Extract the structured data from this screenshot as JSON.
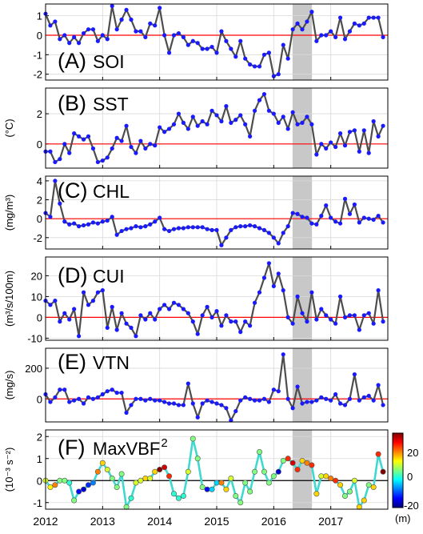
{
  "figure": {
    "x_tick_labels": [
      "2012",
      "2013",
      "2014",
      "2015",
      "2016",
      "2017"
    ],
    "shaded_period": [
      2016.33,
      2016.67
    ],
    "colorbar": {
      "ticks": [
        "20",
        "0",
        "-20"
      ],
      "unit": "(m)",
      "range": [
        -30,
        30
      ],
      "colormap": [
        "#00007f",
        "#0000ff",
        "#007fff",
        "#00ffff",
        "#7fff7f",
        "#ffff00",
        "#ff7f00",
        "#ff0000",
        "#7f0000"
      ]
    },
    "colors": {
      "line": "#4d4d4d",
      "marker": "#1a1aff",
      "zero_line": "#ff0000",
      "shade": "#c8c8c8",
      "grid": "#d9d9d9",
      "vbf_line": "#3fd9d0"
    }
  },
  "chart_data": [
    {
      "id": "A",
      "type": "line",
      "panel_label": "(A)",
      "panel_name": "SOI",
      "ylabel": "",
      "ylim": [
        -2.3,
        1.6
      ],
      "yticks": [
        -2,
        -1,
        0,
        1
      ],
      "ytick_labels": [
        "-2",
        "-1",
        "0",
        "1"
      ],
      "x": [
        2012.0,
        2012.0833,
        2012.1667,
        2012.25,
        2012.3333,
        2012.4167,
        2012.5,
        2012.5833,
        2012.6667,
        2012.75,
        2012.8333,
        2012.9167,
        2013.0,
        2013.0833,
        2013.1667,
        2013.25,
        2013.3333,
        2013.4167,
        2013.5,
        2013.5833,
        2013.6667,
        2013.75,
        2013.8333,
        2013.9167,
        2014.0,
        2014.0833,
        2014.1667,
        2014.25,
        2014.3333,
        2014.4167,
        2014.5,
        2014.5833,
        2014.6667,
        2014.75,
        2014.8333,
        2014.9167,
        2015.0,
        2015.0833,
        2015.1667,
        2015.25,
        2015.3333,
        2015.4167,
        2015.5,
        2015.5833,
        2015.6667,
        2015.75,
        2015.8333,
        2015.9167,
        2016.0,
        2016.0833,
        2016.1667,
        2016.25,
        2016.3333,
        2016.4167,
        2016.5,
        2016.5833,
        2016.6667,
        2016.75,
        2016.8333,
        2016.9167,
        2017.0,
        2017.0833,
        2017.1667,
        2017.25,
        2017.3333,
        2017.4167,
        2017.5,
        2017.5833,
        2017.6667,
        2017.75,
        2017.8333,
        2017.9167
      ],
      "values": [
        1.1,
        0.5,
        0.7,
        -0.2,
        0.0,
        -0.4,
        -0.1,
        -0.4,
        0.1,
        0.3,
        0.3,
        -0.3,
        0.0,
        -0.2,
        1.5,
        0.3,
        0.8,
        1.3,
        0.8,
        0.2,
        0.2,
        -0.1,
        0.6,
        0.5,
        1.4,
        0.0,
        -0.9,
        0.0,
        0.1,
        -0.1,
        -0.5,
        -0.3,
        -0.4,
        -0.7,
        -0.7,
        -0.6,
        -0.9,
        0.2,
        -0.3,
        -0.7,
        -1.1,
        -0.3,
        -1.2,
        -1.5,
        -1.6,
        -1.6,
        -1.0,
        -0.9,
        -2.1,
        -2.0,
        -0.5,
        -1.2,
        0.3,
        0.6,
        0.3,
        0.7,
        1.2,
        -0.3,
        0.0,
        0.0,
        0.2,
        -0.1,
        0.9,
        -0.2,
        0.2,
        0.6,
        0.5,
        0.6,
        0.9,
        0.9,
        0.9,
        -0.1
      ]
    },
    {
      "id": "B",
      "type": "line",
      "panel_label": "(B)",
      "panel_name": "SST",
      "ylabel": "(°C)",
      "ylim": [
        -1.6,
        3.7
      ],
      "yticks": [
        0,
        2
      ],
      "ytick_labels": [
        "0",
        "2"
      ],
      "x": [
        2012.0,
        2012.0833,
        2012.1667,
        2012.25,
        2012.3333,
        2012.4167,
        2012.5,
        2012.5833,
        2012.6667,
        2012.75,
        2012.8333,
        2012.9167,
        2013.0,
        2013.0833,
        2013.1667,
        2013.25,
        2013.3333,
        2013.4167,
        2013.5,
        2013.5833,
        2013.6667,
        2013.75,
        2013.8333,
        2013.9167,
        2014.0,
        2014.0833,
        2014.1667,
        2014.25,
        2014.3333,
        2014.4167,
        2014.5,
        2014.5833,
        2014.6667,
        2014.75,
        2014.8333,
        2014.9167,
        2015.0,
        2015.0833,
        2015.1667,
        2015.25,
        2015.3333,
        2015.4167,
        2015.5,
        2015.5833,
        2015.6667,
        2015.75,
        2015.8333,
        2015.9167,
        2016.0,
        2016.0833,
        2016.1667,
        2016.25,
        2016.3333,
        2016.4167,
        2016.5,
        2016.5833,
        2016.6667,
        2016.75,
        2016.8333,
        2016.9167,
        2017.0,
        2017.0833,
        2017.1667,
        2017.25,
        2017.3333,
        2017.4167,
        2017.5,
        2017.5833,
        2017.6667,
        2017.75,
        2017.8333,
        2017.9167
      ],
      "values": [
        -0.5,
        -0.5,
        -1.2,
        -1.0,
        0.0,
        -0.6,
        0.7,
        0.5,
        0.3,
        0.5,
        -0.3,
        -1.2,
        -1.1,
        -0.9,
        -0.3,
        0.4,
        0.2,
        1.2,
        -0.2,
        -0.6,
        0.2,
        -0.3,
        0.0,
        -0.1,
        1.1,
        0.8,
        1.0,
        1.3,
        2.0,
        1.4,
        1.0,
        1.8,
        1.2,
        1.5,
        1.3,
        2.2,
        1.9,
        1.5,
        2.5,
        1.4,
        1.6,
        1.9,
        1.3,
        0.5,
        2.2,
        2.9,
        3.3,
        2.2,
        2.0,
        1.4,
        1.8,
        1.0,
        2.1,
        1.3,
        1.4,
        1.8,
        1.3,
        -0.7,
        0.0,
        -0.3,
        0.1,
        -0.2,
        0.7,
        -0.1,
        0.8,
        0.9,
        -0.5,
        0.9,
        -0.6,
        1.5,
        0.5,
        1.2
      ]
    },
    {
      "id": "C",
      "type": "line",
      "panel_label": "(C)",
      "panel_name": "CHL",
      "ylabel": "(mg/m³)",
      "ylim": [
        -3.2,
        4.5
      ],
      "yticks": [
        -2,
        0,
        2,
        4
      ],
      "ytick_labels": [
        "-2",
        "0",
        "2",
        "4"
      ],
      "x": [
        2012.0,
        2012.0833,
        2012.1667,
        2012.25,
        2012.3333,
        2012.4167,
        2012.5,
        2012.5833,
        2012.6667,
        2012.75,
        2012.8333,
        2012.9167,
        2013.0,
        2013.0833,
        2013.1667,
        2013.25,
        2013.3333,
        2013.4167,
        2013.5,
        2013.5833,
        2013.6667,
        2013.75,
        2013.8333,
        2013.9167,
        2014.0,
        2014.0833,
        2014.1667,
        2014.25,
        2014.3333,
        2014.4167,
        2014.5,
        2014.5833,
        2014.6667,
        2014.75,
        2014.8333,
        2014.9167,
        2015.0,
        2015.0833,
        2015.1667,
        2015.25,
        2015.3333,
        2015.4167,
        2015.5,
        2015.5833,
        2015.6667,
        2015.75,
        2015.8333,
        2015.9167,
        2016.0,
        2016.0833,
        2016.1667,
        2016.25,
        2016.3333,
        2016.4167,
        2016.5,
        2016.5833,
        2016.6667,
        2016.75,
        2016.8333,
        2016.9167,
        2017.0,
        2017.0833,
        2017.1667,
        2017.25,
        2017.3333,
        2017.4167,
        2017.5,
        2017.5833,
        2017.6667,
        2017.75,
        2017.8333,
        2017.9167
      ],
      "values": [
        0.6,
        0.2,
        4.0,
        1.6,
        -0.3,
        -0.6,
        -0.5,
        -0.8,
        -0.7,
        -0.6,
        -0.4,
        -0.5,
        -0.3,
        -0.2,
        0.2,
        -1.7,
        -1.3,
        -1.1,
        -1.0,
        -0.8,
        -0.9,
        -0.8,
        -0.6,
        -0.3,
        0.1,
        -1.1,
        -1.3,
        -1.1,
        -1.0,
        -1.0,
        -0.9,
        -0.9,
        -0.9,
        -0.9,
        -1.1,
        -1.2,
        -1.2,
        -2.8,
        -2.0,
        -1.2,
        -0.9,
        -0.8,
        -0.8,
        -0.7,
        -0.8,
        -1.0,
        -1.2,
        -1.5,
        -2.0,
        -2.6,
        -1.5,
        -0.8,
        0.6,
        0.5,
        0.2,
        0.1,
        -0.5,
        -0.6,
        0.3,
        1.4,
        0.1,
        -0.3,
        -0.5,
        2.1,
        0.5,
        1.5,
        -0.4,
        0.1,
        0.0,
        -0.1,
        0.3,
        -0.4
      ]
    },
    {
      "id": "D",
      "type": "line",
      "panel_label": "(D)",
      "panel_name": "CUI",
      "ylabel": "(m³/s/100m)",
      "ylim": [
        -11,
        29
      ],
      "yticks": [
        -10,
        0,
        10,
        20
      ],
      "ytick_labels": [
        "-10",
        "0",
        "10",
        "20"
      ],
      "x": [
        2012.0,
        2012.0833,
        2012.1667,
        2012.25,
        2012.3333,
        2012.4167,
        2012.5,
        2012.5833,
        2012.6667,
        2012.75,
        2012.8333,
        2012.9167,
        2013.0,
        2013.0833,
        2013.1667,
        2013.25,
        2013.3333,
        2013.4167,
        2013.5,
        2013.5833,
        2013.6667,
        2013.75,
        2013.8333,
        2013.9167,
        2014.0,
        2014.0833,
        2014.1667,
        2014.25,
        2014.3333,
        2014.4167,
        2014.5,
        2014.5833,
        2014.6667,
        2014.75,
        2014.8333,
        2014.9167,
        2015.0,
        2015.0833,
        2015.1667,
        2015.25,
        2015.3333,
        2015.4167,
        2015.5,
        2015.5833,
        2015.6667,
        2015.75,
        2015.8333,
        2015.9167,
        2016.0,
        2016.0833,
        2016.1667,
        2016.25,
        2016.3333,
        2016.4167,
        2016.5,
        2016.5833,
        2016.6667,
        2016.75,
        2016.8333,
        2016.9167,
        2017.0,
        2017.0833,
        2017.1667,
        2017.25,
        2017.3333,
        2017.4167,
        2017.5,
        2017.5833,
        2017.6667,
        2017.75,
        2017.8333,
        2017.9167
      ],
      "values": [
        8.0,
        6.0,
        8.0,
        -2.0,
        2.0,
        -1.0,
        4.0,
        -9.0,
        12.0,
        6.0,
        8.0,
        12.0,
        13.0,
        -5.0,
        5.0,
        -6.0,
        2.0,
        -3.0,
        -5.0,
        -9.0,
        1.0,
        -1.0,
        2.0,
        -1.0,
        4.0,
        6.0,
        4.0,
        7.0,
        6.0,
        4.0,
        2.0,
        -2.0,
        -8.0,
        1.0,
        5.0,
        0.0,
        3.0,
        -4.0,
        1.0,
        -2.0,
        -2.0,
        -7.0,
        -2.0,
        -4.0,
        7.0,
        12.0,
        19.0,
        26.0,
        15.0,
        21.0,
        13.0,
        0.0,
        -3.0,
        10.0,
        2.0,
        -2.0,
        12.0,
        -1.0,
        4.0,
        1.0,
        -1.0,
        -3.0,
        10.0,
        0.0,
        1.0,
        1.0,
        -6.0,
        1.0,
        2.0,
        -3.0,
        13.0,
        -2.0
      ]
    },
    {
      "id": "E",
      "type": "line",
      "panel_label": "(E)",
      "panel_name": "VTN",
      "ylabel": "(mg/s)",
      "ylim": [
        -150,
        330
      ],
      "yticks": [
        0,
        200
      ],
      "ytick_labels": [
        "0",
        "200"
      ],
      "x": [
        2012.0,
        2012.0833,
        2012.1667,
        2012.25,
        2012.3333,
        2012.4167,
        2012.5,
        2012.5833,
        2012.6667,
        2012.75,
        2012.8333,
        2012.9167,
        2013.0,
        2013.0833,
        2013.1667,
        2013.25,
        2013.3333,
        2013.4167,
        2013.5,
        2013.5833,
        2013.6667,
        2013.75,
        2013.8333,
        2013.9167,
        2014.0,
        2014.0833,
        2014.1667,
        2014.25,
        2014.3333,
        2014.4167,
        2014.5,
        2014.5833,
        2014.6667,
        2014.75,
        2014.8333,
        2014.9167,
        2015.0,
        2015.0833,
        2015.1667,
        2015.25,
        2015.3333,
        2015.4167,
        2015.5,
        2015.5833,
        2015.6667,
        2015.75,
        2015.8333,
        2015.9167,
        2016.0,
        2016.0833,
        2016.1667,
        2016.25,
        2016.3333,
        2016.4167,
        2016.5,
        2016.5833,
        2016.6667,
        2016.75,
        2016.8333,
        2016.9167,
        2017.0,
        2017.0833,
        2017.1667,
        2017.25,
        2017.3333,
        2017.4167,
        2017.5,
        2017.5833,
        2017.6667,
        2017.75,
        2017.8333,
        2017.9167
      ],
      "values": [
        30.0,
        -20.0,
        10.0,
        60.0,
        60.0,
        -20.0,
        -10.0,
        0.0,
        -30.0,
        10.0,
        0.0,
        10.0,
        30.0,
        50.0,
        60.0,
        40.0,
        40.0,
        -90.0,
        -40.0,
        0.0,
        0.0,
        -10.0,
        0.0,
        -10.0,
        -10.0,
        -20.0,
        -30.0,
        -30.0,
        -40.0,
        -40.0,
        100.0,
        -30.0,
        -120.0,
        -30.0,
        -10.0,
        -20.0,
        -30.0,
        -40.0,
        -60.0,
        -140.0,
        -80.0,
        -10.0,
        10.0,
        0.0,
        -10.0,
        -10.0,
        0.0,
        -20.0,
        60.0,
        50.0,
        290.0,
        0.0,
        -60.0,
        80.0,
        -30.0,
        -20.0,
        -20.0,
        -10.0,
        10.0,
        0.0,
        -10.0,
        30.0,
        -30.0,
        -40.0,
        0.0,
        160.0,
        -10.0,
        10.0,
        20.0,
        -10.0,
        90.0,
        -40.0
      ]
    },
    {
      "id": "F",
      "type": "line",
      "panel_label": "(F)",
      "panel_name": "MaxVBF",
      "panel_name_sup": "2",
      "ylabel": "(10⁻³ s⁻²)",
      "ylim": [
        -1.3,
        2.3
      ],
      "yticks": [
        -1,
        0,
        1,
        2
      ],
      "ytick_labels": [
        "-1",
        "0",
        "1",
        "2"
      ],
      "x": [
        2012.0,
        2012.0833,
        2012.1667,
        2012.25,
        2012.3333,
        2012.4167,
        2012.5,
        2012.5833,
        2012.6667,
        2012.75,
        2012.8333,
        2012.9167,
        2013.0,
        2013.0833,
        2013.1667,
        2013.25,
        2013.3333,
        2013.4167,
        2013.5,
        2013.5833,
        2013.6667,
        2013.75,
        2013.8333,
        2013.9167,
        2014.0,
        2014.0833,
        2014.1667,
        2014.25,
        2014.3333,
        2014.4167,
        2014.5,
        2014.5833,
        2014.6667,
        2014.75,
        2014.8333,
        2014.9167,
        2015.0,
        2015.0833,
        2015.1667,
        2015.25,
        2015.3333,
        2015.4167,
        2015.5,
        2015.5833,
        2015.6667,
        2015.75,
        2015.8333,
        2015.9167,
        2016.0,
        2016.0833,
        2016.1667,
        2016.25,
        2016.3333,
        2016.4167,
        2016.5,
        2016.5833,
        2016.6667,
        2016.75,
        2016.8333,
        2016.9167,
        2017.0,
        2017.0833,
        2017.1667,
        2017.25,
        2017.3333,
        2017.4167,
        2017.5,
        2017.5833,
        2017.6667,
        2017.75,
        2017.8333,
        2017.9167
      ],
      "values": [
        0.0,
        -0.3,
        -0.2,
        0.0,
        0.0,
        -0.1,
        -0.9,
        -0.5,
        -0.4,
        -0.2,
        -0.1,
        0.4,
        0.8,
        0.5,
        0.1,
        -0.3,
        0.3,
        -1.2,
        -0.8,
        -0.1,
        0.0,
        0.1,
        0.1,
        0.4,
        0.5,
        0.6,
        0.2,
        -0.6,
        -0.8,
        -0.7,
        0.4,
        1.9,
        1.0,
        -0.3,
        -0.4,
        -0.4,
        -0.1,
        -0.1,
        -0.4,
        0.1,
        -0.7,
        -1.0,
        -0.1,
        -0.5,
        0.4,
        1.3,
        0.4,
        -0.1,
        0.2,
        0.4,
        0.9,
        1.0,
        0.8,
        0.5,
        0.9,
        0.8,
        0.7,
        -0.6,
        0.2,
        0.2,
        0.1,
        0.0,
        -0.2,
        -0.7,
        -0.5,
        0.0,
        -1.2,
        -0.9,
        -0.2,
        -0.3,
        1.2,
        0.4
      ],
      "color_values": [
        5,
        8,
        15,
        0,
        0,
        -5,
        0,
        -22,
        -25,
        -20,
        -15,
        15,
        10,
        5,
        0,
        0,
        0,
        0,
        -5,
        5,
        5,
        10,
        5,
        10,
        30,
        25,
        20,
        -5,
        -5,
        -5,
        5,
        0,
        0,
        0,
        -22,
        -10,
        -10,
        15,
        10,
        5,
        0,
        0,
        0,
        0,
        0,
        0,
        0,
        0,
        0,
        -25,
        0,
        20,
        25,
        20,
        10,
        15,
        20,
        10,
        5,
        10,
        15,
        20,
        10,
        0,
        0,
        5,
        10,
        10,
        0,
        10,
        20,
        30
      ]
    }
  ]
}
